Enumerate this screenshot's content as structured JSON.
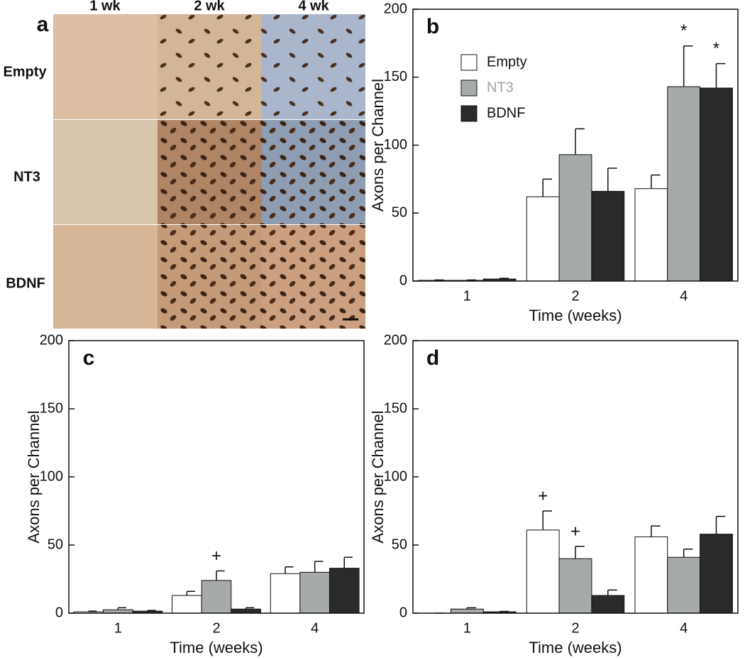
{
  "panel_a": {
    "label": "a",
    "columns": [
      "1 wk",
      "2 wk",
      "4 wk"
    ],
    "rows": [
      "Empty",
      "NT3",
      "BDNF"
    ]
  },
  "chart_data": [
    {
      "type": "bar",
      "label": "b",
      "ylabel": "Axons per Channel",
      "xlabel": "Time (weeks)",
      "categories": [
        "1",
        "2",
        "4"
      ],
      "ylim": [
        0,
        200
      ],
      "yticks": [
        0,
        50,
        100,
        150,
        200
      ],
      "legend": "upper left",
      "series": [
        {
          "name": "Empty",
          "color": "#ffffff",
          "values": [
            0.5,
            62,
            68
          ],
          "errors": [
            0.3,
            13,
            10
          ]
        },
        {
          "name": "NT3",
          "color": "#a6aaa8",
          "label_color": "#a0a4a2",
          "values": [
            0.5,
            93,
            143
          ],
          "errors": [
            0.3,
            19,
            30
          ]
        },
        {
          "name": "BDNF",
          "color": "#2a2a2a",
          "values": [
            1.5,
            66,
            142
          ],
          "errors": [
            0.5,
            17,
            18
          ]
        }
      ],
      "annotations": [
        {
          "text": "*",
          "series": "NT3",
          "category": "4"
        },
        {
          "text": "*",
          "series": "BDNF",
          "category": "4"
        }
      ]
    },
    {
      "type": "bar",
      "label": "c",
      "ylabel": "Axons per Channel",
      "xlabel": "Time (weeks)",
      "categories": [
        "1",
        "2",
        "4"
      ],
      "ylim": [
        0,
        200
      ],
      "yticks": [
        0,
        50,
        100,
        150,
        200
      ],
      "legend": "none",
      "series": [
        {
          "name": "Empty",
          "color": "#ffffff",
          "values": [
            1,
            13,
            29
          ],
          "errors": [
            0.5,
            3,
            5
          ]
        },
        {
          "name": "NT3",
          "color": "#a6aaa8",
          "values": [
            2.5,
            24,
            30
          ],
          "errors": [
            1.5,
            7,
            8
          ]
        },
        {
          "name": "BDNF",
          "color": "#2a2a2a",
          "values": [
            1.5,
            3,
            33
          ],
          "errors": [
            0.5,
            1,
            8
          ]
        }
      ],
      "annotations": [
        {
          "text": "+",
          "series": "NT3",
          "category": "2"
        }
      ]
    },
    {
      "type": "bar",
      "label": "d",
      "ylabel": "Axons per Channel",
      "xlabel": "Time (weeks)",
      "categories": [
        "1",
        "2",
        "4"
      ],
      "ylim": [
        0,
        200
      ],
      "yticks": [
        0,
        50,
        100,
        150,
        200
      ],
      "legend": "none",
      "series": [
        {
          "name": "Empty",
          "color": "#ffffff",
          "values": [
            0,
            61,
            56
          ],
          "errors": [
            0,
            14,
            8
          ]
        },
        {
          "name": "NT3",
          "color": "#a6aaa8",
          "values": [
            3,
            40,
            41
          ],
          "errors": [
            1,
            9,
            6
          ]
        },
        {
          "name": "BDNF",
          "color": "#2a2a2a",
          "values": [
            1,
            13,
            58
          ],
          "errors": [
            0.3,
            4,
            13
          ]
        }
      ],
      "annotations": [
        {
          "text": "+",
          "series": "Empty",
          "category": "2"
        },
        {
          "text": "+",
          "series": "NT3",
          "category": "2"
        }
      ]
    }
  ]
}
